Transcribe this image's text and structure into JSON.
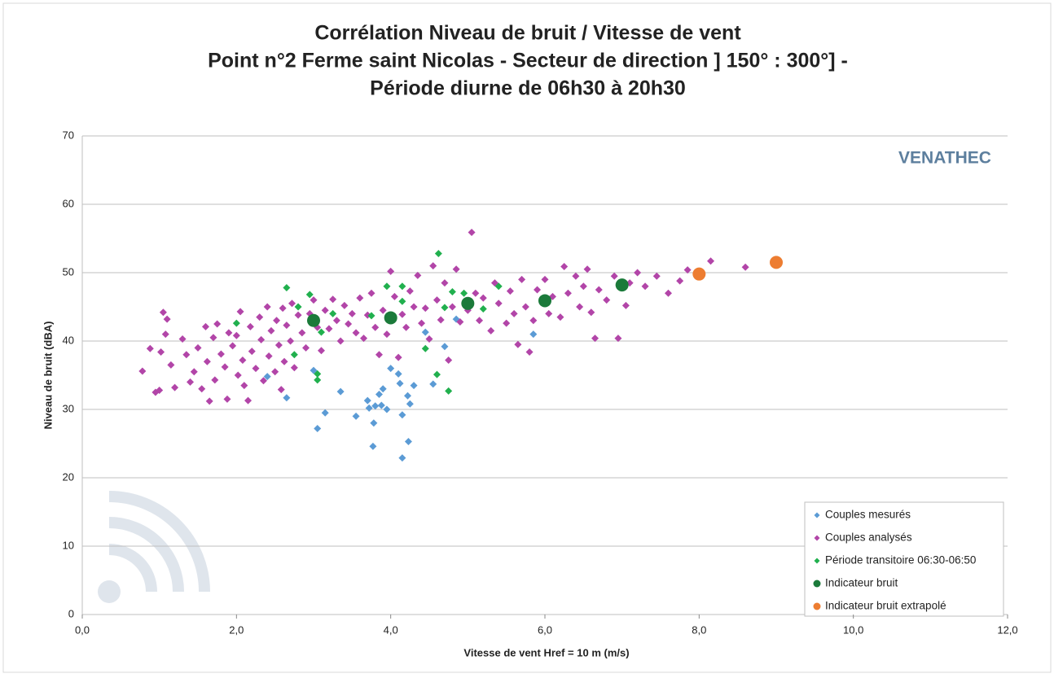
{
  "chart_data": {
    "type": "scatter",
    "title": [
      "Corrélation Niveau de bruit / Vitesse de vent",
      "Point n°2 Ferme saint Nicolas - Secteur de direction ] 150° : 300°] -",
      "Période diurne de 06h30 à 20h30"
    ],
    "xlabel": "Vitesse de vent Href = 10 m (m/s)",
    "ylabel": "Niveau de bruit (dBA)",
    "logo": "VENATHEC",
    "xlim": [
      0,
      12
    ],
    "ylim": [
      0,
      70
    ],
    "xticks": [
      {
        "value": 0,
        "label": "0,0"
      },
      {
        "value": 2,
        "label": "2,0"
      },
      {
        "value": 4,
        "label": "4,0"
      },
      {
        "value": 6,
        "label": "6,0"
      },
      {
        "value": 8,
        "label": "8,0"
      },
      {
        "value": 10,
        "label": "10,0"
      },
      {
        "value": 12,
        "label": "12,0"
      }
    ],
    "yticks": [
      0,
      10,
      20,
      30,
      40,
      50,
      60,
      70
    ],
    "grid": true,
    "legend": "lower right",
    "series": [
      {
        "name": "Couples mesurés",
        "color": "#5b9bd5",
        "marker": "diamond",
        "x": [
          3.0,
          3.05,
          3.15,
          3.35,
          3.55,
          3.7,
          3.72,
          3.77,
          3.78,
          3.8,
          3.85,
          3.88,
          3.95,
          4.1,
          4.12,
          4.15,
          4.15,
          4.22,
          4.23,
          4.25,
          4.3,
          4.45,
          4.55,
          4.7,
          4.85,
          5.85,
          2.65,
          2.4,
          3.9,
          4.0
        ],
        "values": [
          35.7,
          27.2,
          29.5,
          32.6,
          29.0,
          31.3,
          30.2,
          24.6,
          28.0,
          30.5,
          32.2,
          30.6,
          30.0,
          35.2,
          33.8,
          29.2,
          22.9,
          32.0,
          25.3,
          30.8,
          33.5,
          41.3,
          33.7,
          39.2,
          43.2,
          41.0,
          31.7,
          34.8,
          33.0,
          36.0
        ]
      },
      {
        "name": "Couples analysés",
        "color": "#b245a8",
        "marker": "diamond",
        "x": [
          0.78,
          0.88,
          0.95,
          1.0,
          1.02,
          1.05,
          1.08,
          1.1,
          1.15,
          1.2,
          1.3,
          1.35,
          1.4,
          1.45,
          1.5,
          1.55,
          1.6,
          1.62,
          1.65,
          1.7,
          1.72,
          1.75,
          1.8,
          1.85,
          1.88,
          1.9,
          1.95,
          2.0,
          2.02,
          2.05,
          2.08,
          2.1,
          2.15,
          2.18,
          2.2,
          2.25,
          2.3,
          2.32,
          2.35,
          2.4,
          2.42,
          2.45,
          2.5,
          2.52,
          2.55,
          2.58,
          2.6,
          2.62,
          2.65,
          2.7,
          2.72,
          2.75,
          2.8,
          2.85,
          2.9,
          2.95,
          3.0,
          3.05,
          3.1,
          3.15,
          3.2,
          3.25,
          3.3,
          3.35,
          3.4,
          3.45,
          3.5,
          3.55,
          3.6,
          3.65,
          3.7,
          3.75,
          3.8,
          3.85,
          3.9,
          3.95,
          4.0,
          4.05,
          4.1,
          4.15,
          4.2,
          4.25,
          4.3,
          4.35,
          4.4,
          4.45,
          4.5,
          4.55,
          4.6,
          4.65,
          4.7,
          4.75,
          4.8,
          4.85,
          4.9,
          5.0,
          5.05,
          5.1,
          5.15,
          5.2,
          5.3,
          5.35,
          5.4,
          5.5,
          5.55,
          5.6,
          5.65,
          5.7,
          5.75,
          5.8,
          5.85,
          5.9,
          6.0,
          6.05,
          6.1,
          6.2,
          6.25,
          6.3,
          6.4,
          6.45,
          6.5,
          6.55,
          6.6,
          6.65,
          6.7,
          6.8,
          6.9,
          6.95,
          7.05,
          7.1,
          7.2,
          7.3,
          7.45,
          7.6,
          7.75,
          7.85,
          8.15,
          8.6
        ],
        "values": [
          35.6,
          38.9,
          32.5,
          32.8,
          38.4,
          44.2,
          41.0,
          43.2,
          36.5,
          33.2,
          40.3,
          38.0,
          34.0,
          35.5,
          39.0,
          33.0,
          42.1,
          37.0,
          31.2,
          40.5,
          34.3,
          42.5,
          38.1,
          36.2,
          31.5,
          41.2,
          39.3,
          40.8,
          35.0,
          44.3,
          37.2,
          33.5,
          31.3,
          42.1,
          38.5,
          36.0,
          43.5,
          40.2,
          34.2,
          45.0,
          37.8,
          41.5,
          35.5,
          43.0,
          39.4,
          32.9,
          44.8,
          37.0,
          42.3,
          40.0,
          45.5,
          36.1,
          43.8,
          41.2,
          39.0,
          44.0,
          46.0,
          42.0,
          38.6,
          44.5,
          41.8,
          46.1,
          43.0,
          40.0,
          45.2,
          42.5,
          44.0,
          41.2,
          46.3,
          40.4,
          43.8,
          47.0,
          42.0,
          38.0,
          44.5,
          41.0,
          50.2,
          46.5,
          37.6,
          43.9,
          42.0,
          47.3,
          45.0,
          49.6,
          42.6,
          44.8,
          40.3,
          51.0,
          46.0,
          43.1,
          48.5,
          37.2,
          45.0,
          50.5,
          42.8,
          44.5,
          55.9,
          47.0,
          43.0,
          46.3,
          41.5,
          48.5,
          45.5,
          42.6,
          47.3,
          44.0,
          39.5,
          49.0,
          45.0,
          38.4,
          43.0,
          47.5,
          49.0,
          44.0,
          46.5,
          43.5,
          50.9,
          47.0,
          49.5,
          45.0,
          48.0,
          50.5,
          44.2,
          40.4,
          47.5,
          46.0,
          49.5,
          40.4,
          45.2,
          48.5,
          50.0,
          48.0,
          49.5,
          47.0,
          48.8,
          50.4,
          51.7,
          50.8
        ]
      },
      {
        "name": "Période transitoire 06:30-06:50",
        "color": "#21b04e",
        "marker": "diamond",
        "x": [
          2.0,
          2.65,
          2.8,
          2.75,
          2.95,
          3.05,
          3.05,
          3.1,
          3.25,
          3.75,
          3.95,
          4.15,
          4.15,
          4.45,
          4.6,
          4.62,
          4.75,
          4.8,
          4.95,
          5.2,
          5.4,
          4.7
        ],
        "values": [
          42.6,
          47.8,
          45.0,
          38.0,
          46.8,
          35.2,
          34.3,
          41.3,
          44.0,
          43.7,
          48.0,
          48.0,
          45.8,
          38.9,
          35.1,
          52.8,
          32.7,
          47.2,
          47.0,
          44.7,
          48.0,
          44.9
        ]
      },
      {
        "name": "Indicateur bruit",
        "color": "#1b7a3a",
        "marker": "circle",
        "x": [
          3,
          4,
          5,
          6,
          7
        ],
        "values": [
          43.0,
          43.4,
          45.5,
          45.9,
          48.2
        ]
      },
      {
        "name": "Indicateur bruit extrapolé",
        "color": "#ed7d31",
        "marker": "circle",
        "x": [
          8,
          9
        ],
        "values": [
          49.8,
          51.5
        ]
      }
    ]
  }
}
